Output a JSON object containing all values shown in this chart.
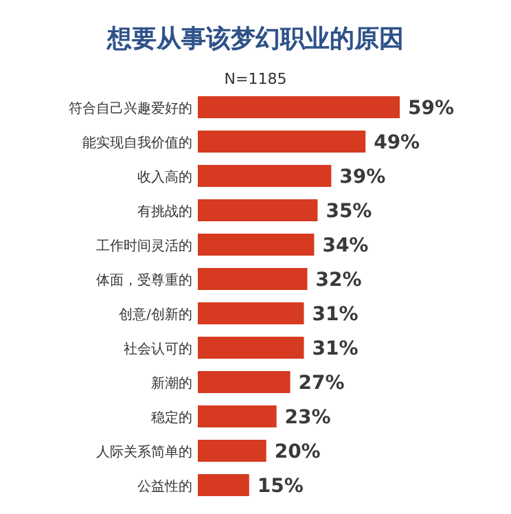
{
  "chart_data": {
    "type": "bar",
    "orientation": "horizontal",
    "title": "想要从事该梦幻职业的原因",
    "subtitle": "N=1185",
    "categories": [
      "符合自己兴趣爱好的",
      "能实现自我价值的",
      "收入高的",
      "有挑战的",
      "工作时间灵活的",
      "体面，受尊重的",
      "创意/创新的",
      "社会认可的",
      "新潮的",
      "稳定的",
      "人际关系简单的",
      "公益性的"
    ],
    "values": [
      59,
      49,
      39,
      35,
      34,
      32,
      31,
      31,
      27,
      23,
      20,
      15
    ],
    "value_labels": [
      "59%",
      "49%",
      "39%",
      "35%",
      "34%",
      "32%",
      "31%",
      "31%",
      "27%",
      "23%",
      "20%",
      "15%"
    ],
    "color": "#d63a20"
  }
}
